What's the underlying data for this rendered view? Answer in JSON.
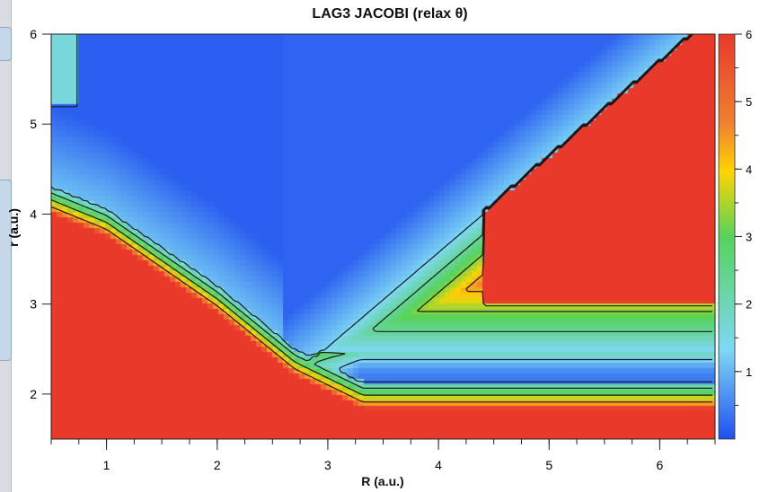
{
  "chart_data": {
    "type": "heatmap",
    "title": "LAG3 JACOBI (relax θ)",
    "xlabel": "R (a.u.)",
    "ylabel": "r (a.u.)",
    "xlim": [
      0.5,
      6.5
    ],
    "ylim": [
      1.5,
      6.0
    ],
    "x_ticks": [
      "1",
      "2",
      "3",
      "4",
      "5",
      "6"
    ],
    "y_ticks": [
      "2",
      "3",
      "4",
      "5",
      "6"
    ],
    "colorbar_ticks": [
      "1",
      "2",
      "3",
      "4",
      "5",
      "6"
    ],
    "colorbar_range": [
      0,
      6
    ],
    "colormap": [
      "#1f4ff0",
      "#7ed8f5",
      "#55d35a",
      "#ffd500",
      "#e8392a"
    ],
    "contour_levels_shown": 4,
    "grid": false,
    "surface_features": {
      "upper_left_valley_max_r": 6.0,
      "saddle_point": {
        "R": 3.1,
        "r": 2.65
      },
      "right_channel_r": 2.15,
      "right_plateau_corner": {
        "R": 4.4,
        "r": 3.0
      },
      "repulsive_wall_edge_r_at_R1": 3.7
    }
  }
}
